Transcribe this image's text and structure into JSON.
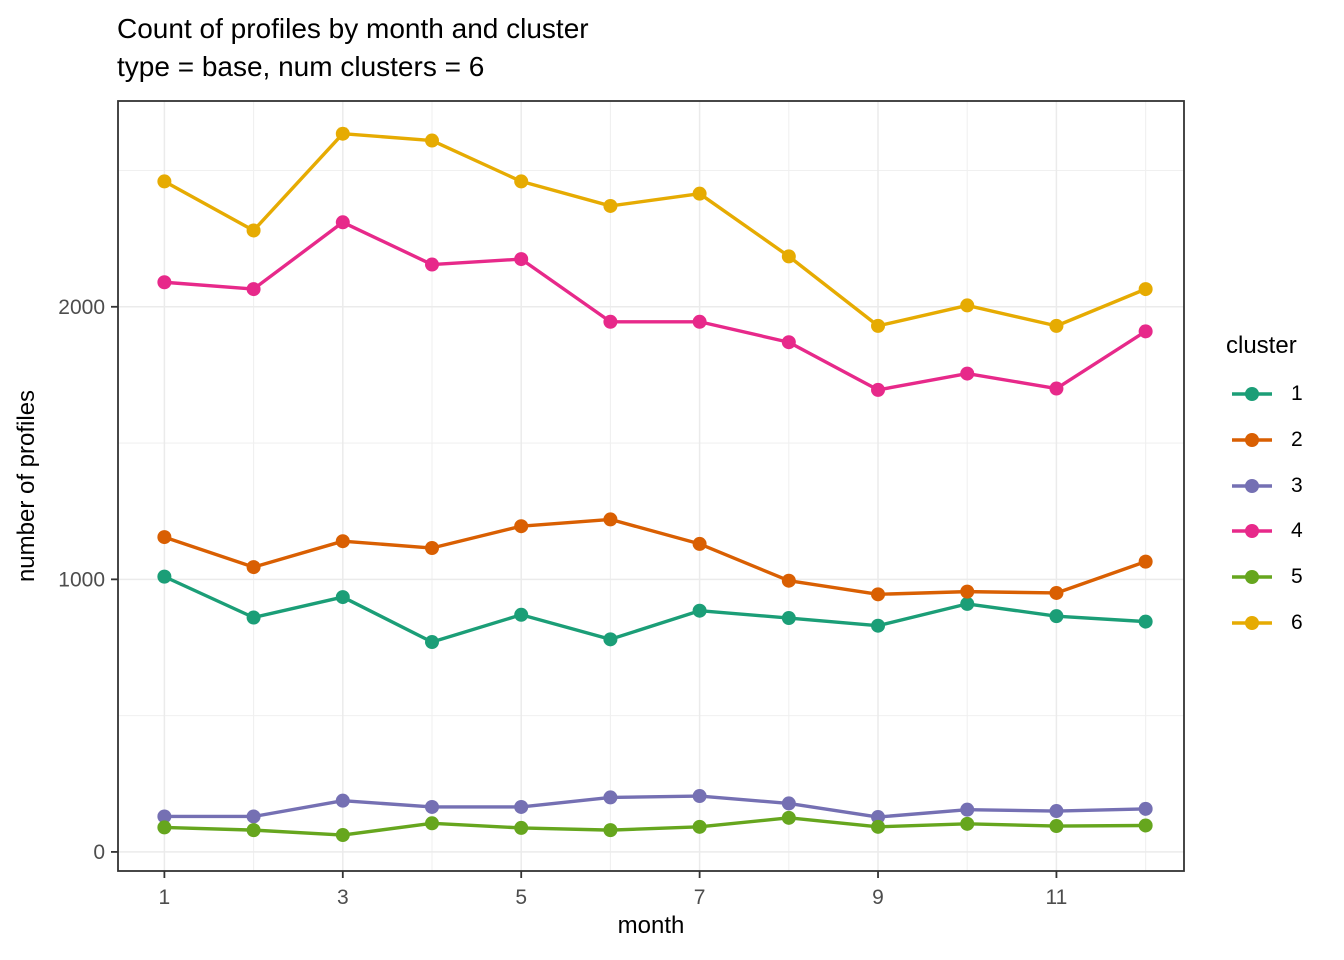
{
  "chart_data": {
    "type": "line",
    "title": "Count of profiles by month and cluster",
    "subtitle": "type = base, num clusters = 6",
    "xlabel": "month",
    "ylabel": "number of profiles",
    "legend_title": "cluster",
    "legend_position": "right",
    "grid": true,
    "x": [
      1,
      2,
      3,
      4,
      5,
      6,
      7,
      8,
      9,
      10,
      11,
      12
    ],
    "x_ticks": [
      1,
      3,
      5,
      7,
      9,
      11
    ],
    "x_minor": [
      2,
      4,
      6,
      8,
      10,
      12
    ],
    "y_ticks": [
      0,
      1000,
      2000
    ],
    "y_minor": [
      500,
      1500,
      2500
    ],
    "xlim": [
      0.48,
      12.43
    ],
    "ylim": [
      -70,
      2755
    ],
    "series": [
      {
        "name": "1",
        "color": "#1B9E77",
        "values": [
          1010,
          860,
          935,
          770,
          870,
          780,
          885,
          858,
          830,
          910,
          865,
          845
        ]
      },
      {
        "name": "2",
        "color": "#D95F02",
        "values": [
          1155,
          1045,
          1140,
          1115,
          1195,
          1220,
          1130,
          995,
          945,
          955,
          950,
          1065
        ]
      },
      {
        "name": "3",
        "color": "#7570B3",
        "values": [
          130,
          130,
          188,
          165,
          165,
          200,
          205,
          178,
          128,
          155,
          150,
          158
        ]
      },
      {
        "name": "4",
        "color": "#E7298A",
        "values": [
          2090,
          2065,
          2310,
          2155,
          2175,
          1945,
          1945,
          1870,
          1695,
          1755,
          1700,
          1910
        ]
      },
      {
        "name": "5",
        "color": "#66A61E",
        "values": [
          90,
          80,
          62,
          105,
          88,
          80,
          92,
          125,
          92,
          103,
          95,
          97
        ]
      },
      {
        "name": "6",
        "color": "#E6AB02",
        "values": [
          2460,
          2280,
          2635,
          2610,
          2460,
          2370,
          2415,
          2185,
          1930,
          2005,
          1930,
          2065
        ]
      }
    ],
    "colors": {
      "background": "#ffffff",
      "grid_major": "#ebebeb",
      "grid_minor": "#f0f0f0",
      "panel_border": "#333333",
      "tick_mark": "#333333",
      "tick_label": "#4d4d4d",
      "text": "#000000"
    }
  }
}
